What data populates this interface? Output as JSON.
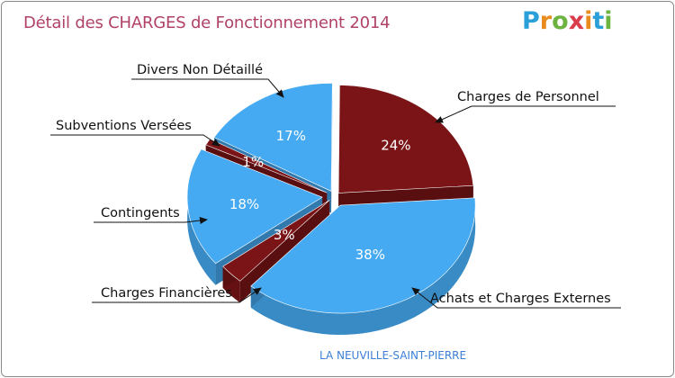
{
  "header": {
    "title": "Détail des CHARGES de Fonctionnement 2014",
    "logo_text": "Proxiti",
    "logo_letters": [
      {
        "ch": "P",
        "color": "#2a9fd8"
      },
      {
        "ch": "r",
        "color": "#e98b1d"
      },
      {
        "ch": "o",
        "color": "#6cb33f"
      },
      {
        "ch": "x",
        "color": "#d93c4a"
      },
      {
        "ch": "i",
        "color": "#e98b1d"
      },
      {
        "ch": "t",
        "color": "#2a9fd8"
      },
      {
        "ch": "i",
        "color": "#6cb33f"
      }
    ]
  },
  "footer": {
    "commune": "LA NEUVILLE-SAINT-PIERRE"
  },
  "chart_data": {
    "type": "pie",
    "title": "Détail des CHARGES de Fonctionnement 2014",
    "colors": {
      "blue": "#45aaf2",
      "dark_red": "#7b1416"
    },
    "slices": [
      {
        "label": "Charges de Personnel",
        "value": 24,
        "percent_label": "24%",
        "color": "#7b1416"
      },
      {
        "label": "Achats et Charges Externes",
        "value": 38,
        "percent_label": "38%",
        "color": "#45aaf2"
      },
      {
        "label": "Charges Financières",
        "value": 3,
        "percent_label": "3%",
        "color": "#7b1416"
      },
      {
        "label": "Contingents",
        "value": 18,
        "percent_label": "18%",
        "color": "#45aaf2"
      },
      {
        "label": "Subventions Versées",
        "value": 1,
        "percent_label": "1%",
        "color": "#7b1416"
      },
      {
        "label": "Divers Non Détaillé",
        "value": 17,
        "percent_label": "17%",
        "color": "#45aaf2"
      }
    ]
  }
}
